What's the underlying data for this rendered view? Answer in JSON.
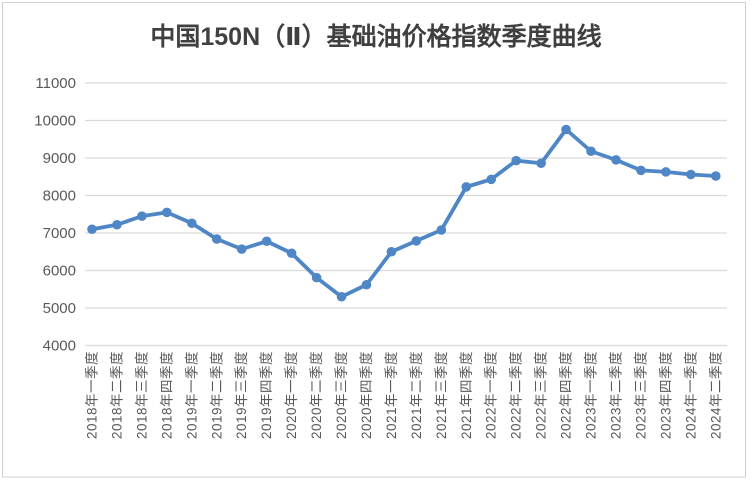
{
  "chart_data": {
    "type": "line",
    "title": "中国150N（Ⅱ）基础油价格指数季度曲线",
    "categories": [
      "2018年一季度",
      "2018年二季度",
      "2018年三季度",
      "2018年四季度",
      "2019年一季度",
      "2019年二季度",
      "2019年三季度",
      "2019年四季度",
      "2020年一季度",
      "2020年二季度",
      "2020年三季度",
      "2020年四季度",
      "2021年一季度",
      "2021年二季度",
      "2021年三季度",
      "2021年四季度",
      "2022年一季度",
      "2022年二季度",
      "2022年三季度",
      "2022年四季度",
      "2023年一季度",
      "2023年二季度",
      "2023年三季度",
      "2023年四季度",
      "2024年一季度",
      "2024年二季度"
    ],
    "values": [
      7100,
      7220,
      7450,
      7550,
      7260,
      6840,
      6570,
      6780,
      6460,
      5810,
      5300,
      5620,
      6500,
      6790,
      7080,
      8230,
      8430,
      8930,
      8860,
      9760,
      9180,
      8950,
      8670,
      8630,
      8560,
      8520
    ],
    "ylim": [
      4000,
      11000
    ],
    "y_ticks": [
      4000,
      5000,
      6000,
      7000,
      8000,
      9000,
      10000,
      11000
    ],
    "xlabel": "",
    "ylabel": "",
    "grid": true,
    "legend": "none",
    "marker": "circle",
    "colors": {
      "line": "#4E86C6",
      "marker": "#4E86C6",
      "gridline": "#D9D9D9",
      "axis_labels": "#595959",
      "title": "#404040",
      "frame_border": "#D0D0D0",
      "background": "#FFFFFF"
    }
  }
}
